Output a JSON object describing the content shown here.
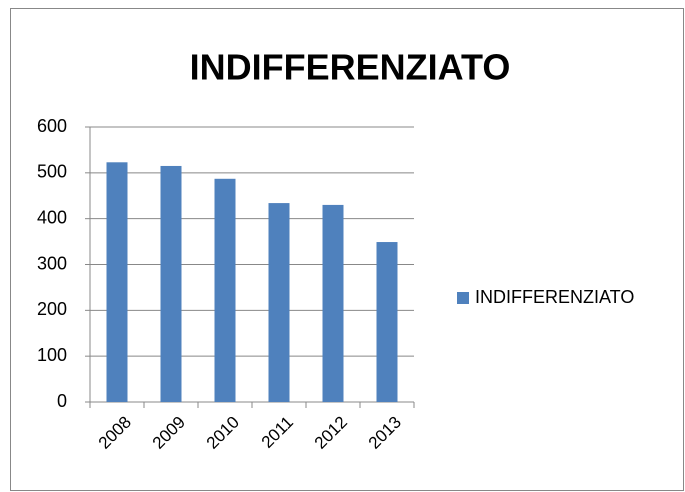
{
  "chart_data": {
    "type": "bar",
    "title": "INDIFFERENZIATO",
    "categories": [
      "2008",
      "2009",
      "2010",
      "2011",
      "2012",
      "2013"
    ],
    "series": [
      {
        "name": "INDIFFERENZIATO",
        "color": "#4f81bd",
        "values": [
          523,
          515,
          487,
          434,
          430,
          349
        ]
      }
    ],
    "ylim": [
      0,
      600
    ],
    "yticks": [
      0,
      100,
      200,
      300,
      400,
      500,
      600
    ],
    "grid": true,
    "legend": "right"
  }
}
